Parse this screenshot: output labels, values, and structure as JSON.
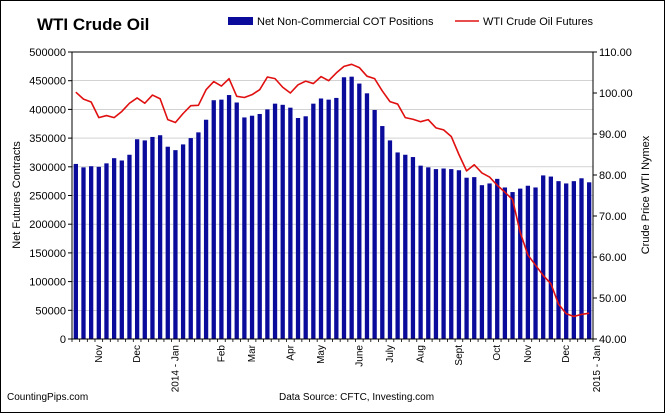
{
  "chart_data": {
    "type": "bar+line",
    "title": "WTI Crude Oil",
    "ylabel": "Net Futures Contracts",
    "y2label": "Crude Price WTI Nymex",
    "ylim": [
      0,
      500000
    ],
    "y2lim": [
      40,
      110
    ],
    "yticks": [
      "0",
      "50000",
      "100000",
      "150000",
      "200000",
      "250000",
      "300000",
      "350000",
      "400000",
      "450000",
      "500000"
    ],
    "y2ticks": [
      "40.00",
      "50.00",
      "60.00",
      "70.00",
      "80.00",
      "90.00",
      "100.00",
      "110.00"
    ],
    "xticks": [
      {
        "label": "Nov",
        "index": 3
      },
      {
        "label": "Dec",
        "index": 8
      },
      {
        "label": "2014 - Jan",
        "index": 13
      },
      {
        "label": "Feb",
        "index": 19
      },
      {
        "label": "Mar",
        "index": 23
      },
      {
        "label": "Apr",
        "index": 28
      },
      {
        "label": "May",
        "index": 32
      },
      {
        "label": "June",
        "index": 37
      },
      {
        "label": "July",
        "index": 41
      },
      {
        "label": "Aug",
        "index": 45
      },
      {
        "label": "Sept",
        "index": 50
      },
      {
        "label": "Oct",
        "index": 55
      },
      {
        "label": "Nov",
        "index": 59
      },
      {
        "label": "Dec",
        "index": 64
      },
      {
        "label": "2015 - Jan",
        "index": 68
      }
    ],
    "legend_position": "top",
    "grid": true,
    "series": [
      {
        "name": "Net Non-Commercial COT Positions",
        "type": "bar",
        "color": "#0a0a9b",
        "values": [
          305000,
          299000,
          301000,
          300000,
          306000,
          315000,
          311000,
          321000,
          348000,
          346000,
          352000,
          355000,
          335000,
          329000,
          339000,
          350000,
          360000,
          382000,
          416000,
          417000,
          425000,
          412000,
          386000,
          389000,
          392000,
          400000,
          410000,
          408000,
          403000,
          385000,
          388000,
          410000,
          419000,
          417000,
          420000,
          456000,
          457000,
          445000,
          428000,
          399000,
          371000,
          346000,
          325000,
          321000,
          317000,
          302000,
          299000,
          296000,
          297000,
          296000,
          294000,
          281000,
          282000,
          268000,
          271000,
          279000,
          264000,
          256000,
          262000,
          267000,
          264000,
          285000,
          283000,
          275000,
          271000,
          275000,
          280000,
          273000
        ]
      },
      {
        "name": "WTI Crude Oil Futures",
        "type": "line",
        "color": "#e01010",
        "values": [
          100.2,
          98.5,
          97.8,
          94.0,
          94.5,
          94.0,
          95.5,
          97.5,
          98.8,
          97.5,
          99.5,
          98.6,
          93.5,
          92.8,
          95.0,
          96.9,
          97.0,
          100.8,
          102.8,
          101.7,
          103.5,
          99.2,
          98.9,
          99.6,
          100.8,
          103.9,
          103.5,
          101.4,
          100.0,
          102.0,
          102.9,
          102.3,
          104.0,
          103.0,
          104.9,
          106.5,
          107.0,
          106.2,
          104.1,
          103.5,
          100.5,
          97.9,
          97.3,
          94.0,
          93.6,
          93.0,
          93.5,
          91.5,
          91.0,
          89.4,
          85.0,
          81.0,
          82.5,
          80.5,
          79.5,
          77.5,
          75.8,
          74.0,
          66.0,
          60.5,
          58.0,
          55.5,
          53.5,
          48.5,
          46.2,
          45.5,
          46.0,
          46.3
        ]
      }
    ]
  },
  "footer": {
    "left": "CountingPips.com",
    "center": "Data Source:  CFTC, Investing.com"
  }
}
